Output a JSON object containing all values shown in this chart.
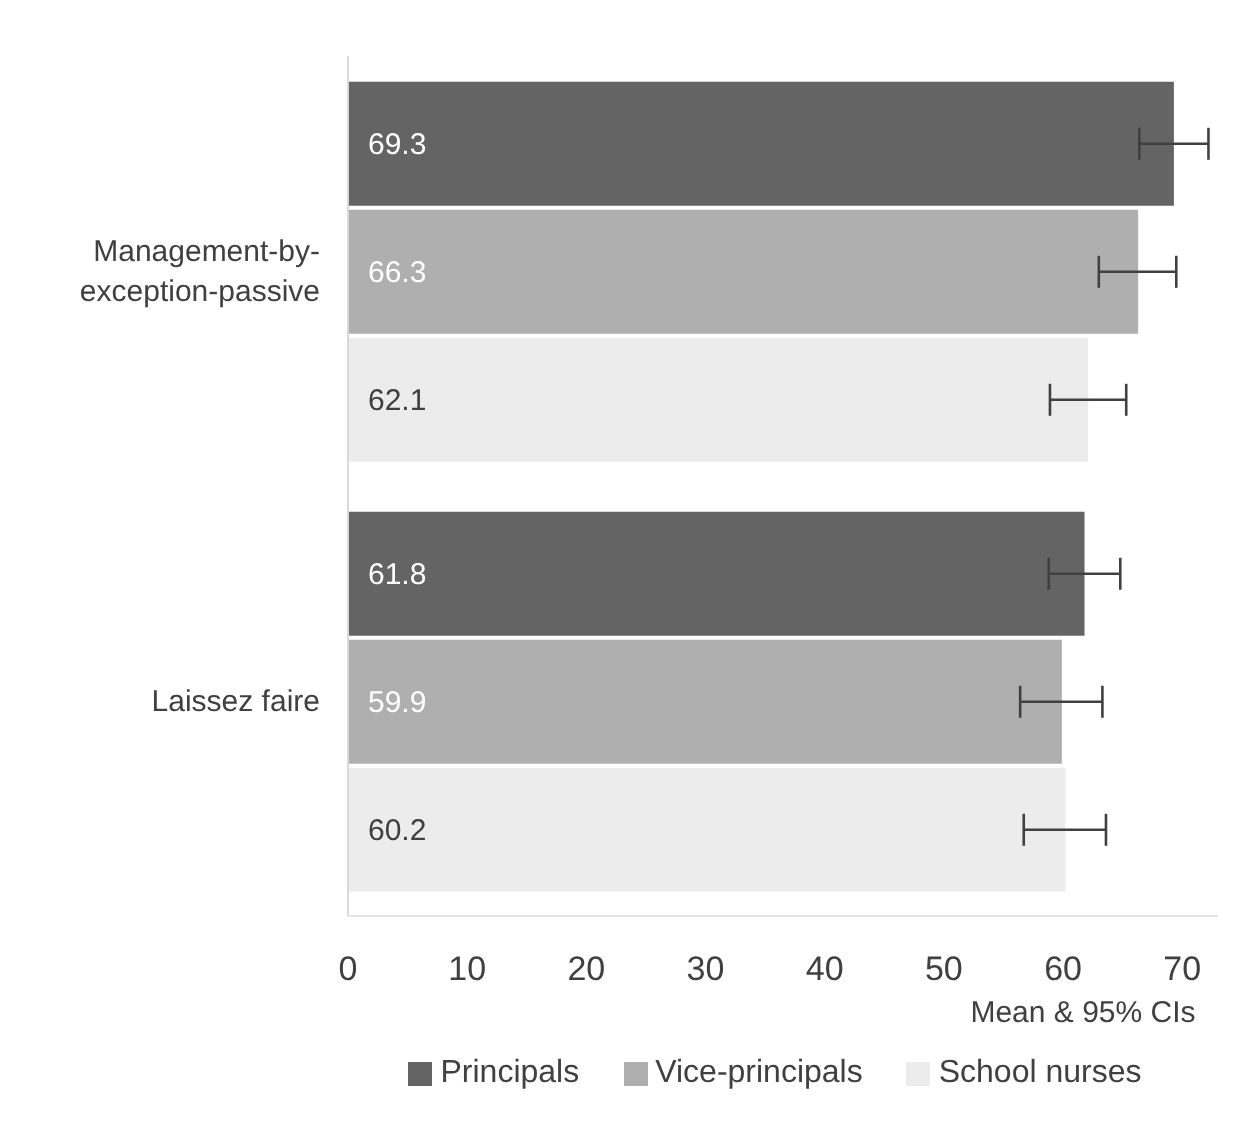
{
  "chart_data": {
    "type": "bar",
    "orientation": "horizontal",
    "xlabel": "Mean & 95% CIs",
    "categories": [
      "Management-by-exception-passive",
      "Laissez faire"
    ],
    "series": [
      {
        "name": "Principals",
        "color": "#646464",
        "values": [
          69.3,
          61.8
        ],
        "errors": [
          [
            66.4,
            72.2
          ],
          [
            58.8,
            64.8
          ]
        ]
      },
      {
        "name": "Vice-principals",
        "color": "#afafaf",
        "values": [
          66.3,
          59.9
        ],
        "errors": [
          [
            63.0,
            69.5
          ],
          [
            56.4,
            63.3
          ]
        ]
      },
      {
        "name": "School nurses",
        "color": "#ececec",
        "values": [
          62.1,
          60.2
        ],
        "errors": [
          [
            58.9,
            65.3
          ],
          [
            56.7,
            63.6
          ]
        ]
      }
    ],
    "xlim": [
      0,
      73
    ],
    "xticks": [
      0,
      10,
      20,
      30,
      40,
      50,
      60,
      70
    ],
    "data_labels": true,
    "grid": false,
    "legend": "bottom"
  }
}
